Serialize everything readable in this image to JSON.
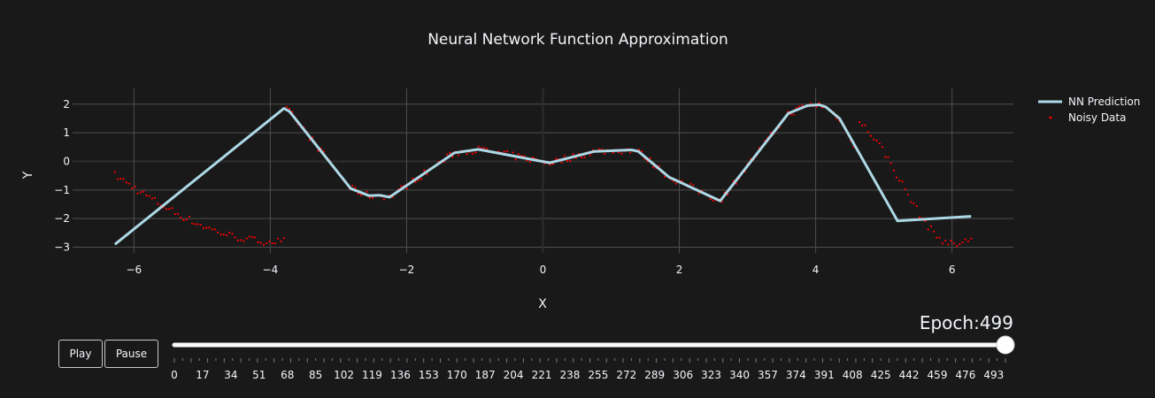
{
  "chart_data": {
    "type": "line",
    "title": "Neural Network Function Approximation",
    "xlabel": "X",
    "ylabel": "Y",
    "xlim": [
      -6.9,
      6.9
    ],
    "ylim": [
      -3.2,
      2.55
    ],
    "x_ticks": [
      -6,
      -4,
      -2,
      0,
      2,
      4,
      6
    ],
    "y_ticks": [
      -3,
      -2,
      -1,
      0,
      1,
      2
    ],
    "grid": true,
    "legend_position": "top-right",
    "series": [
      {
        "name": "NN Prediction",
        "mode": "line",
        "color": "#add8e6",
        "x": [
          -6.28,
          -3.8,
          -3.72,
          -2.82,
          -2.55,
          -2.4,
          -2.25,
          -1.3,
          -0.95,
          0.1,
          0.75,
          1.3,
          1.4,
          1.85,
          2.6,
          3.6,
          3.88,
          4.05,
          4.15,
          4.35,
          5.2,
          6.28
        ],
        "y": [
          -2.9,
          1.85,
          1.75,
          -0.95,
          -1.2,
          -1.18,
          -1.25,
          0.3,
          0.42,
          -0.05,
          0.35,
          0.4,
          0.35,
          -0.55,
          -1.38,
          1.68,
          1.95,
          1.98,
          1.9,
          1.5,
          -2.08,
          -1.92
        ]
      },
      {
        "name": "Noisy Data",
        "mode": "markers",
        "color": "#ff0000",
        "function": "sin(x)+cos(2x)/2 approx samples",
        "x_range": [
          -6.28,
          6.28
        ],
        "n_points": 300
      }
    ]
  },
  "slider": {
    "prefix": "Epoch:",
    "current": "499",
    "current_fraction": 1.0,
    "tick_labels": [
      "0",
      "17",
      "34",
      "51",
      "68",
      "85",
      "102",
      "119",
      "136",
      "153",
      "170",
      "187",
      "204",
      "221",
      "238",
      "255",
      "272",
      "289",
      "306",
      "323",
      "340",
      "357",
      "374",
      "391",
      "408",
      "425",
      "442",
      "459",
      "476",
      "493"
    ]
  },
  "controls": {
    "play_label": "Play",
    "pause_label": "Pause"
  },
  "colors": {
    "background": "#191919",
    "grid": "#4f4f4f",
    "zero_line": "#2d2d2d",
    "text": "#f2f5fa",
    "line": "#add8e6",
    "markers": "#ff0000"
  }
}
